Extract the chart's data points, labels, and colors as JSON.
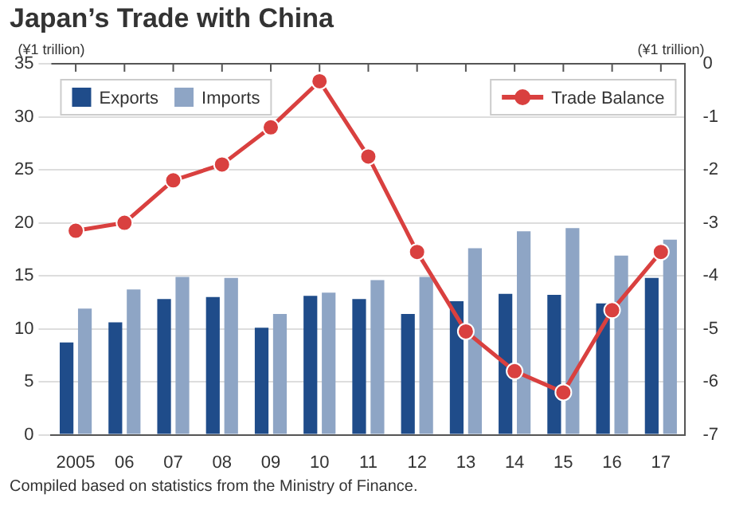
{
  "chart_data": {
    "type": "bar",
    "title": "Japan’s Trade with China",
    "categories": [
      "2005",
      "06",
      "07",
      "08",
      "09",
      "10",
      "11",
      "12",
      "13",
      "14",
      "15",
      "16",
      "17"
    ],
    "series": [
      {
        "name": "Exports",
        "color": "#1f4c8a",
        "values": [
          8.7,
          10.6,
          12.8,
          13.0,
          10.1,
          13.1,
          12.8,
          11.4,
          12.6,
          13.3,
          13.2,
          12.4,
          14.8
        ]
      },
      {
        "name": "Imports",
        "color": "#8ea5c5",
        "values": [
          11.9,
          13.7,
          14.9,
          14.8,
          11.4,
          13.4,
          14.6,
          14.9,
          17.6,
          19.2,
          19.5,
          16.9,
          18.4
        ]
      },
      {
        "name": "Trade Balance",
        "type": "line",
        "axis": "y2",
        "color": "#d9403f",
        "values": [
          -3.15,
          -3.0,
          -2.2,
          -1.9,
          -1.2,
          -0.33,
          -1.75,
          -3.55,
          -5.05,
          -5.8,
          -6.2,
          -4.65,
          -3.55
        ]
      }
    ],
    "ylabel": "(¥1 trillion)",
    "y2label": "(¥1 trillion)",
    "ylim": [
      0,
      35
    ],
    "yticks": [
      0,
      5,
      10,
      15,
      20,
      25,
      30,
      35
    ],
    "y2lim": [
      -7,
      0
    ],
    "y2ticks": [
      -7,
      -6,
      -5,
      -4,
      -3,
      -2,
      -1,
      0
    ],
    "grid": "y",
    "legend": "top",
    "marker": "circle",
    "annotations": [
      "Compiled based on statistics from the Ministry of Finance."
    ]
  }
}
